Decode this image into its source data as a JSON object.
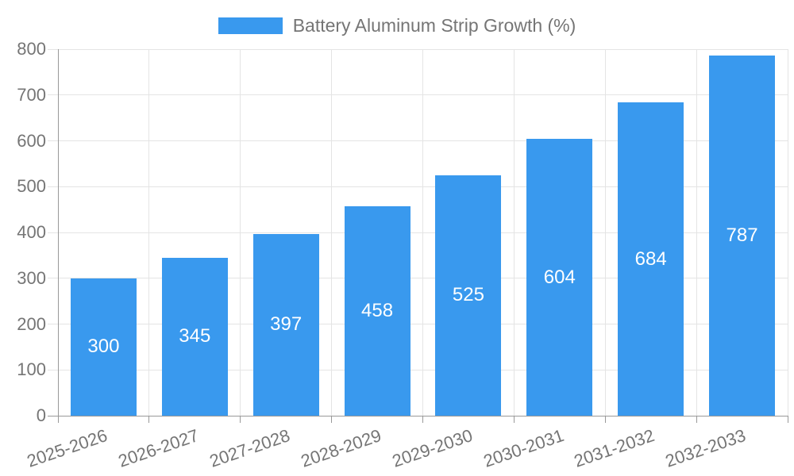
{
  "legend": {
    "label": "Battery Aluminum Strip Growth (%)"
  },
  "chart_data": {
    "type": "bar",
    "title": "Battery Aluminum Strip Growth (%)",
    "series_name": "Battery Aluminum Strip Growth (%)",
    "categories": [
      "2025-2026",
      "2026-2027",
      "2027-2028",
      "2028-2029",
      "2029-2030",
      "2030-2031",
      "2031-2032",
      "2032-2033"
    ],
    "values": [
      300,
      345,
      397,
      458,
      525,
      604,
      684,
      787
    ],
    "value_labels": [
      "300",
      "345",
      "397",
      "458",
      "525",
      "604",
      "684",
      "787"
    ],
    "xlabel": "",
    "ylabel": "",
    "ylim": [
      0,
      800
    ],
    "y_ticks": [
      0,
      100,
      200,
      300,
      400,
      500,
      600,
      700,
      800
    ],
    "grid": true,
    "legend_position": "top-center",
    "colors": {
      "bar": "#3999EE",
      "value_label": "#FFFFFF",
      "axis_text": "#757575",
      "gridline": "#E4E4E4",
      "axis_line": "#999999",
      "background": "#FFFFFF"
    }
  }
}
